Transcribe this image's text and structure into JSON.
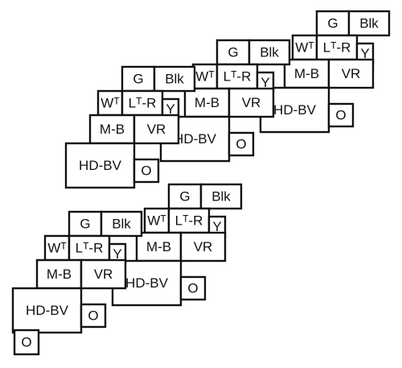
{
  "diagram": {
    "stroke_color": "#111111",
    "fill_color": "#ffffff",
    "blocks": [
      {
        "name": "block-a",
        "cells": [
          {
            "key": "g",
            "label": "G"
          },
          {
            "key": "blk",
            "label": "Blk"
          },
          {
            "key": "w",
            "label": "Wᵀ"
          },
          {
            "key": "lr",
            "label": "Lᵀ-R"
          },
          {
            "key": "y",
            "label": "Y"
          },
          {
            "key": "mb",
            "label": "M-B"
          },
          {
            "key": "vr",
            "label": "VR"
          },
          {
            "key": "hdbv",
            "label": "HD-BV"
          },
          {
            "key": "o",
            "label": "O"
          }
        ]
      },
      {
        "name": "block-b",
        "cells": [
          {
            "key": "g",
            "label": "G"
          },
          {
            "key": "blk",
            "label": "Blk"
          },
          {
            "key": "w",
            "label": "Wᵀ"
          },
          {
            "key": "lr",
            "label": "Lᵀ-R"
          },
          {
            "key": "y",
            "label": "Y"
          },
          {
            "key": "mb",
            "label": "M-B"
          },
          {
            "key": "vr",
            "label": "VR"
          },
          {
            "key": "hdbv",
            "label": "HD-BV"
          },
          {
            "key": "o",
            "label": "O"
          }
        ]
      },
      {
        "name": "block-c",
        "cells": [
          {
            "key": "g",
            "label": "G"
          },
          {
            "key": "blk",
            "label": "Blk"
          },
          {
            "key": "w",
            "label": "Wᵀ"
          },
          {
            "key": "lr",
            "label": "Lᵀ-R"
          },
          {
            "key": "y",
            "label": "Y"
          },
          {
            "key": "mb",
            "label": "M-B"
          },
          {
            "key": "vr",
            "label": "VR"
          },
          {
            "key": "hdbv",
            "label": "HD-BV"
          },
          {
            "key": "o",
            "label": "O"
          }
        ]
      },
      {
        "name": "block-d",
        "cells": [
          {
            "key": "g",
            "label": "G"
          },
          {
            "key": "blk",
            "label": "Blk"
          },
          {
            "key": "w",
            "label": "Wᵀ"
          },
          {
            "key": "lr",
            "label": "Lᵀ-R"
          },
          {
            "key": "y",
            "label": "Y"
          },
          {
            "key": "mb",
            "label": "M-B"
          },
          {
            "key": "vr",
            "label": "VR"
          },
          {
            "key": "hdbv",
            "label": "HD-BV"
          },
          {
            "key": "o",
            "label": "O"
          }
        ]
      },
      {
        "name": "block-e",
        "cells": [
          {
            "key": "g",
            "label": "G"
          },
          {
            "key": "blk",
            "label": "Blk"
          },
          {
            "key": "w",
            "label": "Wᵀ"
          },
          {
            "key": "lr",
            "label": "Lᵀ-R"
          },
          {
            "key": "y",
            "label": "Y"
          },
          {
            "key": "mb",
            "label": "M-B"
          },
          {
            "key": "vr",
            "label": "VR"
          },
          {
            "key": "hdbv",
            "label": "HD-BV"
          },
          {
            "key": "o",
            "label": "O"
          }
        ]
      }
    ]
  }
}
